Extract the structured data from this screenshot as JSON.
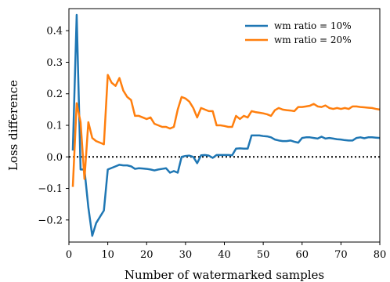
{
  "chart_data": {
    "type": "line",
    "xlabel": "Number of watermarked samples",
    "ylabel": "Loss difference",
    "xlim": [
      0,
      80
    ],
    "ylim": [
      -0.27,
      0.47
    ],
    "xticks": [
      0,
      10,
      20,
      30,
      40,
      50,
      60,
      70,
      80
    ],
    "yticks": [
      -0.2,
      -0.1,
      0.0,
      0.1,
      0.2,
      0.3,
      0.4
    ],
    "ytick_labels": [
      "−0.2",
      "−0.1",
      "0.0",
      "0.1",
      "0.2",
      "0.3",
      "0.4"
    ],
    "legend_position": "top-right",
    "grid": false,
    "reference_line": {
      "y": 0,
      "style": "dotted",
      "color": "#000000"
    },
    "series": [
      {
        "name": "wm ratio = 10%",
        "color": "#1f77b4",
        "x": [
          1,
          2,
          3,
          4,
          5,
          6,
          7,
          8,
          9,
          10,
          11,
          12,
          13,
          14,
          15,
          16,
          17,
          18,
          19,
          20,
          21,
          22,
          23,
          24,
          25,
          26,
          27,
          28,
          29,
          30,
          31,
          32,
          33,
          34,
          35,
          36,
          37,
          38,
          39,
          40,
          41,
          42,
          43,
          44,
          45,
          46,
          47,
          48,
          49,
          50,
          51,
          52,
          53,
          54,
          55,
          56,
          57,
          58,
          59,
          60,
          61,
          62,
          63,
          64,
          65,
          66,
          67,
          68,
          69,
          70,
          71,
          72,
          73,
          74,
          75,
          76,
          77,
          78,
          79,
          80
        ],
        "values": [
          0.02,
          0.45,
          -0.04,
          -0.04,
          -0.16,
          -0.25,
          -0.21,
          -0.19,
          -0.17,
          -0.04,
          -0.035,
          -0.03,
          -0.025,
          -0.027,
          -0.027,
          -0.03,
          -0.038,
          -0.036,
          -0.037,
          -0.038,
          -0.04,
          -0.043,
          -0.04,
          -0.038,
          -0.036,
          -0.05,
          -0.045,
          -0.05,
          0.0,
          0.003,
          0.004,
          0.0,
          -0.02,
          0.005,
          0.006,
          0.004,
          -0.003,
          0.006,
          0.006,
          0.006,
          0.006,
          0.005,
          0.026,
          0.027,
          0.026,
          0.026,
          0.068,
          0.068,
          0.068,
          0.066,
          0.065,
          0.062,
          0.055,
          0.052,
          0.05,
          0.05,
          0.052,
          0.048,
          0.045,
          0.06,
          0.062,
          0.062,
          0.06,
          0.058,
          0.064,
          0.058,
          0.06,
          0.058,
          0.056,
          0.055,
          0.053,
          0.052,
          0.052,
          0.06,
          0.062,
          0.059,
          0.062,
          0.062,
          0.061,
          0.06
        ]
      },
      {
        "name": "wm ratio = 20%",
        "color": "#ff7f0e",
        "x": [
          1,
          2,
          3,
          4,
          5,
          6,
          7,
          8,
          9,
          10,
          11,
          12,
          13,
          14,
          15,
          16,
          17,
          18,
          19,
          20,
          21,
          22,
          23,
          24,
          25,
          26,
          27,
          28,
          29,
          30,
          31,
          32,
          33,
          34,
          35,
          36,
          37,
          38,
          39,
          40,
          41,
          42,
          43,
          44,
          45,
          46,
          47,
          48,
          49,
          50,
          51,
          52,
          53,
          54,
          55,
          56,
          57,
          58,
          59,
          60,
          61,
          62,
          63,
          64,
          65,
          66,
          67,
          68,
          69,
          70,
          71,
          72,
          73,
          74,
          75,
          76,
          77,
          78,
          79,
          80
        ],
        "values": [
          -0.095,
          0.17,
          0.11,
          -0.07,
          0.11,
          0.06,
          0.05,
          0.045,
          0.04,
          0.26,
          0.235,
          0.225,
          0.25,
          0.21,
          0.19,
          0.18,
          0.13,
          0.13,
          0.125,
          0.12,
          0.125,
          0.105,
          0.1,
          0.095,
          0.095,
          0.09,
          0.095,
          0.15,
          0.19,
          0.185,
          0.175,
          0.155,
          0.125,
          0.155,
          0.15,
          0.145,
          0.145,
          0.1,
          0.1,
          0.098,
          0.095,
          0.095,
          0.13,
          0.12,
          0.13,
          0.125,
          0.145,
          0.142,
          0.14,
          0.138,
          0.135,
          0.13,
          0.148,
          0.155,
          0.15,
          0.148,
          0.147,
          0.145,
          0.158,
          0.158,
          0.16,
          0.162,
          0.168,
          0.16,
          0.158,
          0.163,
          0.155,
          0.152,
          0.155,
          0.152,
          0.155,
          0.152,
          0.16,
          0.16,
          0.158,
          0.157,
          0.156,
          0.155,
          0.152,
          0.15
        ]
      }
    ]
  }
}
